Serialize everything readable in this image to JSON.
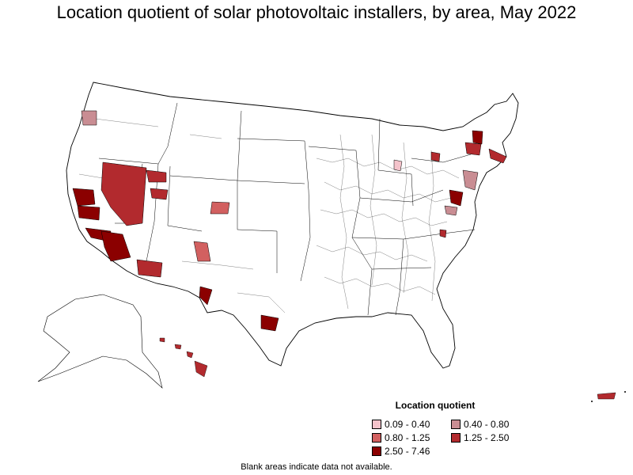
{
  "title": "Location quotient of solar photovoltaic installers, by area, May 2022",
  "legend": {
    "title": "Location quotient",
    "items": [
      {
        "label": "0.09 - 0.40",
        "color": "#f4c3cb"
      },
      {
        "label": "0.40 - 0.80",
        "color": "#c98d93"
      },
      {
        "label": "0.80 - 1.25",
        "color": "#d26060"
      },
      {
        "label": "1.25 - 2.50",
        "color": "#b22a2e"
      },
      {
        "label": "2.50 - 7.46",
        "color": "#8b0000"
      }
    ]
  },
  "footnote": "Blank areas indicate data not available.",
  "colors": {
    "background": "#ffffff",
    "border": "#000000",
    "no_data": "#ffffff"
  }
}
